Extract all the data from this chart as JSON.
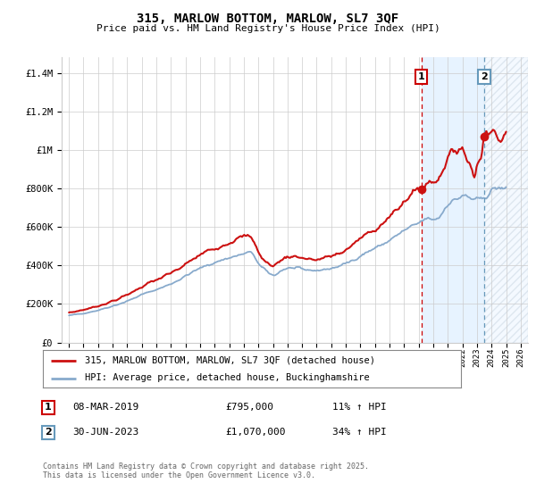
{
  "title": "315, MARLOW BOTTOM, MARLOW, SL7 3QF",
  "subtitle": "Price paid vs. HM Land Registry's House Price Index (HPI)",
  "ylabel_ticks": [
    "£0",
    "£200K",
    "£400K",
    "£600K",
    "£800K",
    "£1M",
    "£1.2M",
    "£1.4M"
  ],
  "ytick_values": [
    0,
    200000,
    400000,
    600000,
    800000,
    1000000,
    1200000,
    1400000
  ],
  "ylim": [
    0,
    1480000
  ],
  "xlim_start": 1994.5,
  "xlim_end": 2026.5,
  "xticks": [
    1995,
    1996,
    1997,
    1998,
    1999,
    2000,
    2001,
    2002,
    2003,
    2004,
    2005,
    2006,
    2007,
    2008,
    2009,
    2010,
    2011,
    2012,
    2013,
    2014,
    2015,
    2016,
    2017,
    2018,
    2019,
    2020,
    2021,
    2022,
    2023,
    2024,
    2025,
    2026
  ],
  "sale1_x": 2019.18,
  "sale1_y": 795000,
  "sale1_label": "1",
  "sale1_date": "08-MAR-2019",
  "sale1_price": "£795,000",
  "sale1_hpi": "11% ↑ HPI",
  "sale2_x": 2023.5,
  "sale2_y": 1070000,
  "sale2_label": "2",
  "sale2_date": "30-JUN-2023",
  "sale2_price": "£1,070,000",
  "sale2_hpi": "34% ↑ HPI",
  "vline1_color": "#cc0000",
  "vline2_color": "#6699bb",
  "property_line_color": "#cc1111",
  "hpi_line_color": "#88aacc",
  "shade_color": "#ddeeff",
  "legend1": "315, MARLOW BOTTOM, MARLOW, SL7 3QF (detached house)",
  "legend2": "HPI: Average price, detached house, Buckinghamshire",
  "footer": "Contains HM Land Registry data © Crown copyright and database right 2025.\nThis data is licensed under the Open Government Licence v3.0.",
  "background_color": "#ffffff",
  "grid_color": "#cccccc"
}
